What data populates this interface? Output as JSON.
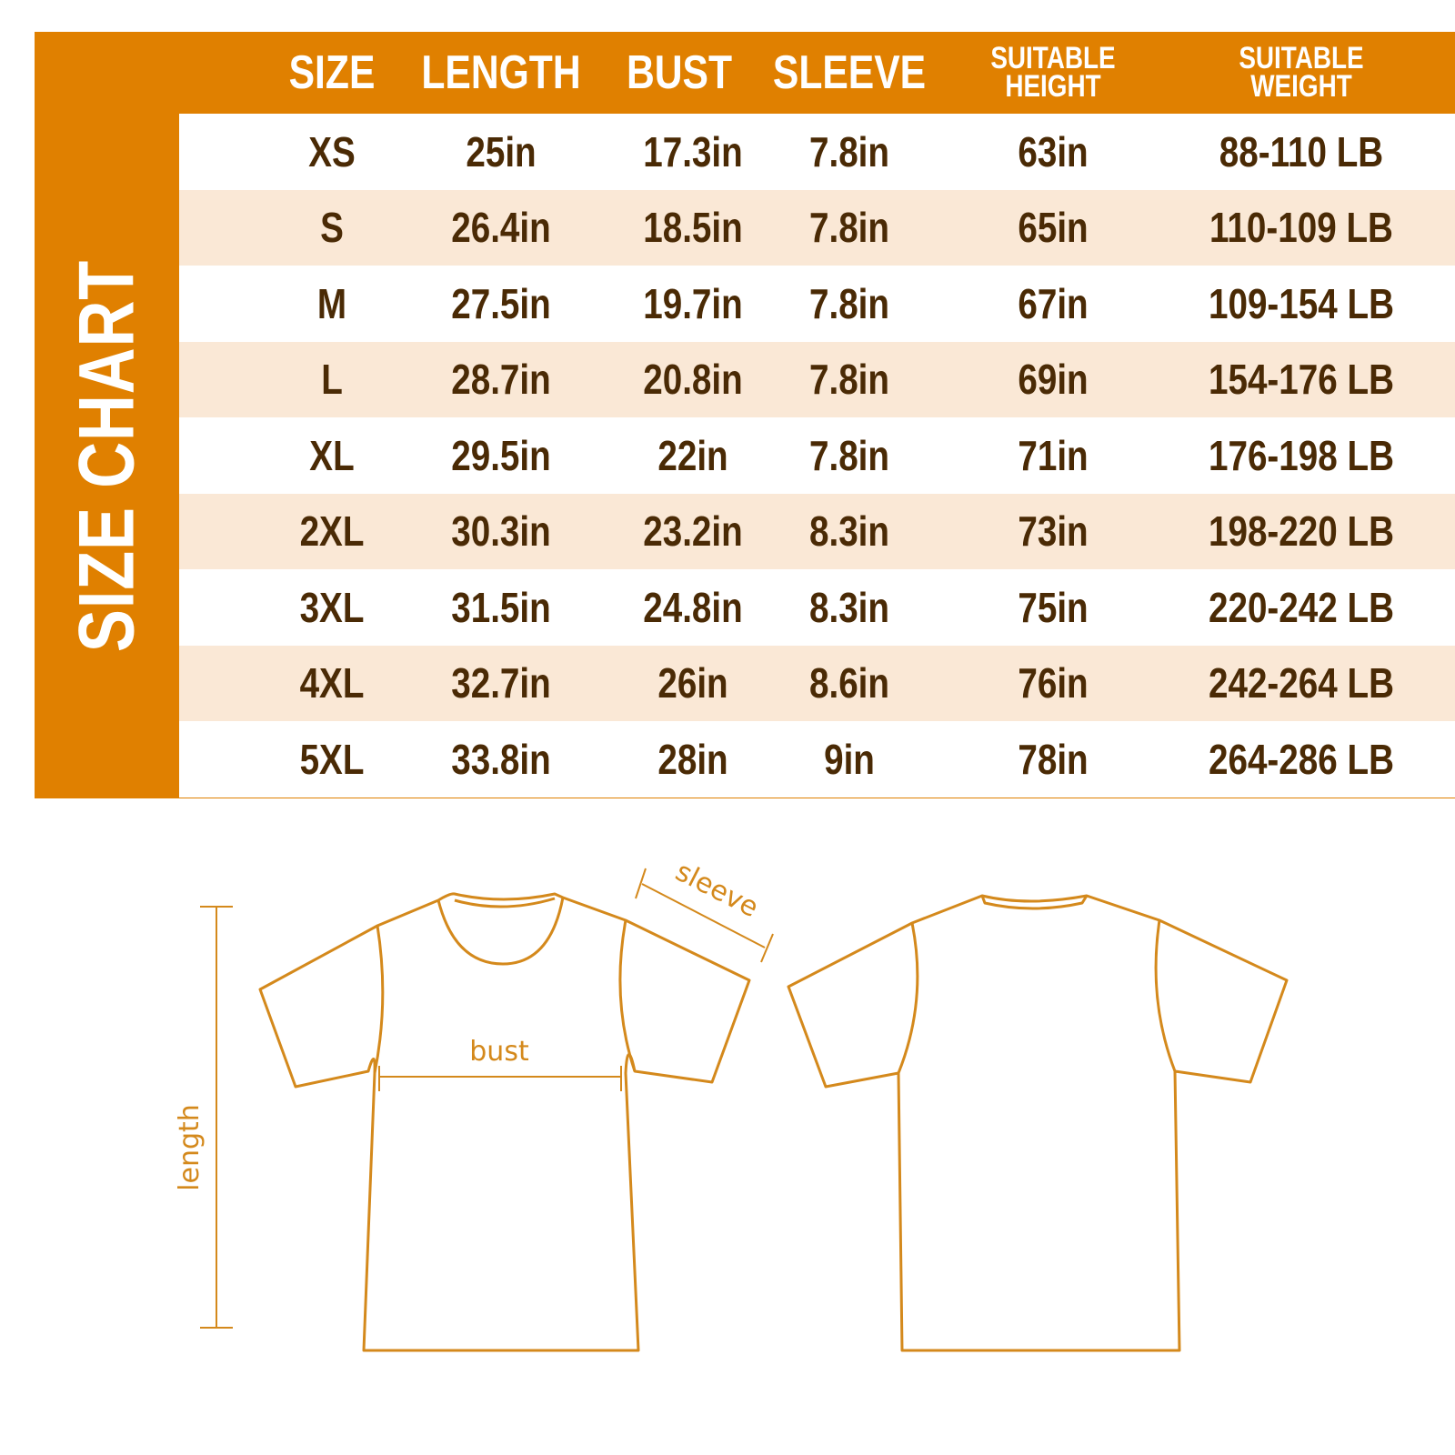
{
  "title": "SIZE CHART",
  "colors": {
    "accent": "#E08000",
    "text": "#4A2A05",
    "alt_row": "#FAE8D6",
    "diagram_line": "#D4891C"
  },
  "columns": [
    {
      "label": "SIZE"
    },
    {
      "label": "LENGTH"
    },
    {
      "label": "BUST"
    },
    {
      "label": "SLEEVE"
    },
    {
      "label_line1": "SUITABLE",
      "label_line2": "HEIGHT"
    },
    {
      "label_line1": "SUITABLE",
      "label_line2": "WEIGHT"
    }
  ],
  "rows": [
    [
      "XS",
      "25in",
      "17.3in",
      "7.8in",
      "63in",
      "88-110 LB"
    ],
    [
      "S",
      "26.4in",
      "18.5in",
      "7.8in",
      "65in",
      "110-109 LB"
    ],
    [
      "M",
      "27.5in",
      "19.7in",
      "7.8in",
      "67in",
      "109-154 LB"
    ],
    [
      "L",
      "28.7in",
      "20.8in",
      "7.8in",
      "69in",
      "154-176 LB"
    ],
    [
      "XL",
      "29.5in",
      "22in",
      "7.8in",
      "71in",
      "176-198 LB"
    ],
    [
      "2XL",
      "30.3in",
      "23.2in",
      "8.3in",
      "73in",
      "198-220 LB"
    ],
    [
      "3XL",
      "31.5in",
      "24.8in",
      "8.3in",
      "75in",
      "220-242 LB"
    ],
    [
      "4XL",
      "32.7in",
      "26in",
      "8.6in",
      "76in",
      "242-264 LB"
    ],
    [
      "5XL",
      "33.8in",
      "28in",
      "9in",
      "78in",
      "264-286 LB"
    ]
  ],
  "diagram": {
    "sleeve_label": "sleeve",
    "bust_label": "bust",
    "length_label": "length"
  }
}
